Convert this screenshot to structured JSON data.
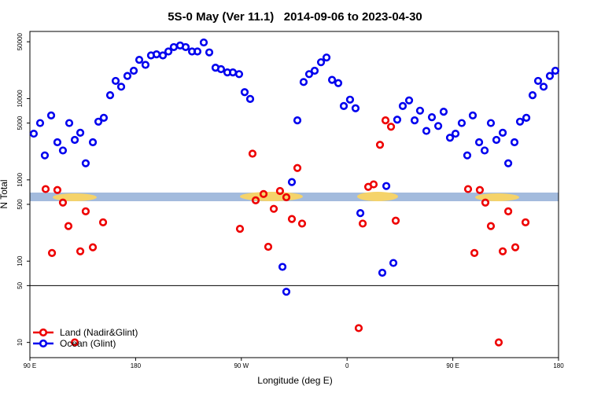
{
  "chart_data": {
    "type": "scatter",
    "title": "5S-0 May (Ver 11.1)   2014-09-06 to 2023-04-30",
    "x_label": "Longitude (deg E)",
    "y_label": "N Total",
    "log_y": true,
    "legend": "lower left",
    "reference_line": 50,
    "xlim": [
      90,
      540
    ],
    "xticks": [
      {
        "value": 90,
        "label": "90 E"
      },
      {
        "value": 180,
        "label": "180"
      },
      {
        "value": 270,
        "label": "90 W"
      },
      {
        "value": 360,
        "label": "0"
      },
      {
        "value": 450,
        "label": "90 E"
      },
      {
        "value": 540,
        "label": "180"
      }
    ],
    "ylim": [
      6.5,
      67000
    ],
    "yticks": [
      10,
      50,
      100,
      500,
      1000,
      5000,
      10000,
      50000
    ],
    "series": [
      {
        "name": "Land (Nadir&Glint)",
        "color": "#ee0000",
        "x": [
          103.4,
          108.8,
          113.4,
          118.1,
          122.8,
          128.2,
          132.9,
          137.5,
          143.6,
          152.3,
          268.8,
          279.5,
          282.2,
          288.9,
          292.9,
          297.6,
          302.9,
          308.3,
          313.0,
          317.7,
          321.7,
          369.9,
          373.3,
          378.0,
          382.6,
          388.0,
          392.7,
          397.4,
          401.4,
          463.0,
          468.4,
          473.0,
          477.7,
          482.4,
          489.1,
          492.5,
          497.2,
          503.2,
          511.9
        ],
        "values": [
          770,
          126,
          750,
          525,
          270,
          10,
          132,
          410,
          148,
          300,
          250,
          2100,
          560,
          670,
          150,
          440,
          730,
          610,
          330,
          1400,
          290,
          15,
          290,
          820,
          880,
          2700,
          5400,
          4500,
          315,
          770,
          126,
          750,
          525,
          270,
          10,
          132,
          410,
          148,
          300
        ]
      },
      {
        "name": "Ocean (Glint)",
        "color": "#0000ee",
        "x": [
          93.3,
          98.7,
          102.7,
          108.1,
          113.4,
          118.1,
          123.5,
          128.2,
          132.9,
          137.5,
          143.6,
          148.3,
          152.9,
          158.3,
          163.0,
          167.7,
          173.0,
          178.4,
          183.1,
          188.4,
          193.1,
          197.8,
          203.2,
          207.9,
          212.5,
          217.9,
          222.6,
          228.0,
          232.6,
          238.0,
          242.7,
          248.0,
          252.7,
          258.1,
          262.8,
          268.1,
          272.8,
          277.5,
          305.0,
          308.3,
          313.0,
          317.7,
          323.0,
          327.7,
          332.4,
          337.8,
          342.5,
          347.2,
          352.5,
          357.2,
          362.5,
          367.2,
          371.3,
          390.0,
          393.4,
          399.4,
          402.7,
          407.4,
          412.8,
          417.5,
          422.1,
          427.5,
          432.2,
          437.6,
          442.2,
          447.6,
          452.3,
          457.6,
          462.3,
          467.0,
          472.4,
          477.1,
          482.4,
          487.1,
          492.5,
          497.2,
          502.5,
          507.2,
          512.6,
          517.9,
          522.6,
          527.3,
          532.6,
          537.3
        ],
        "values": [
          3700,
          5000,
          2000,
          6200,
          2900,
          2300,
          5000,
          3100,
          3800,
          1600,
          2900,
          5200,
          5800,
          11000,
          16500,
          14000,
          19000,
          22000,
          30000,
          26000,
          34000,
          35000,
          34000,
          38000,
          43000,
          45000,
          43000,
          38000,
          38000,
          49000,
          37000,
          24000,
          23000,
          21000,
          21000,
          20000,
          12000,
          9900,
          85,
          42,
          940,
          5400,
          16000,
          20000,
          22000,
          28000,
          32000,
          17000,
          15500,
          8100,
          9700,
          7600,
          390,
          72,
          840,
          95,
          5500,
          8100,
          9500,
          5400,
          7100,
          4000,
          5900,
          4600,
          6900,
          3300,
          3700,
          5000,
          2000,
          6200,
          2900,
          2300,
          5000,
          3100,
          3800,
          1600,
          2900,
          5200,
          5800,
          11000,
          16500,
          14000,
          19000,
          22000
        ]
      }
    ]
  }
}
